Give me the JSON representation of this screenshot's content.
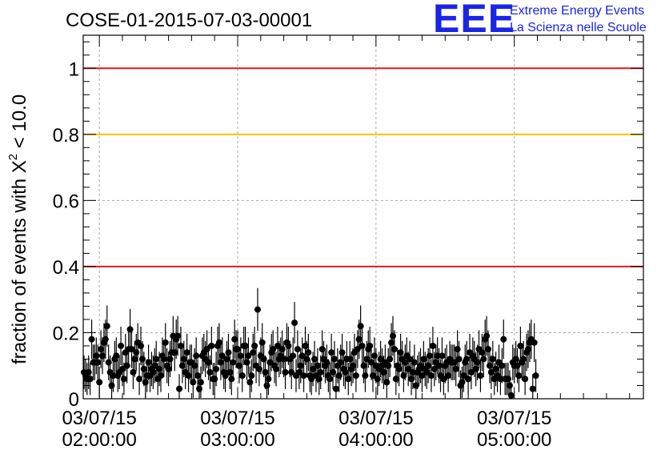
{
  "title": "COSE-01-2015-07-03-00001",
  "logo": {
    "mark": "EEE",
    "line1": "Extreme Energy Events",
    "line2": "La Scienza nelle Scuole",
    "color": "#1a24e6"
  },
  "colors": {
    "threshold_red": "#e41a1a",
    "threshold_yellow": "#f5c400",
    "marker": "#000000",
    "grid": "#aaaaaa"
  },
  "chart_data": {
    "type": "scatter",
    "title": "COSE-01-2015-07-03-00001",
    "ylabel": "fraction of events with χ² < 10.0",
    "ylabel_parts": {
      "before": "fraction of events with ",
      "symbol": "X",
      "exponent": "2",
      "after": " < 10.0"
    },
    "xlabel": "",
    "x_range": [
      "2015-07-03 01:53:00",
      "2015-07-03 05:56:00"
    ],
    "ylim": [
      0,
      1.1
    ],
    "y_ticks": [
      "0",
      "0.2",
      "0.4",
      "0.6",
      "0.8",
      "1"
    ],
    "x_ticks": [
      {
        "date": "03/07/15",
        "time": "02:00:00",
        "t": "2015-07-03 02:00:00"
      },
      {
        "date": "03/07/15",
        "time": "03:00:00",
        "t": "2015-07-03 03:00:00"
      },
      {
        "date": "03/07/15",
        "time": "04:00:00",
        "t": "2015-07-03 04:00:00"
      },
      {
        "date": "03/07/15",
        "time": "05:00:00",
        "t": "2015-07-03 05:00:00"
      }
    ],
    "grid": true,
    "reference_lines": [
      {
        "y": 1.0,
        "color": "#e41a1a"
      },
      {
        "y": 0.8,
        "color": "#f5c400"
      },
      {
        "y": 0.4,
        "color": "#e41a1a"
      }
    ],
    "series": [
      {
        "marker": "filled-circle",
        "error_bars": true,
        "x_start": "2015-07-03 01:53:20",
        "x_step_seconds": 40,
        "y": [
          0.08,
          0.07,
          0.06,
          0.08,
          0.06,
          0.18,
          0.11,
          0.11,
          0.13,
          0.11,
          0.05,
          0.15,
          0.13,
          0.17,
          0.18,
          0.22,
          0.11,
          0.08,
          0.04,
          0.07,
          0.12,
          0.13,
          0.07,
          0.08,
          0.16,
          0.09,
          0.06,
          0.14,
          0.1,
          0.15,
          0.21,
          0.15,
          0.08,
          0.12,
          0.14,
          0.17,
          0.06,
          0.16,
          0.12,
          0.09,
          0.05,
          0.07,
          0.11,
          0.07,
          0.09,
          0.08,
          0.1,
          0.12,
          0.06,
          0.09,
          0.07,
          0.13,
          0.12,
          0.17,
          0.1,
          0.09,
          0.12,
          0.14,
          0.19,
          0.14,
          0.18,
          0.19,
          0.03,
          0.16,
          0.1,
          0.12,
          0.08,
          0.14,
          0.07,
          0.11,
          0.11,
          0.05,
          0.1,
          0.13,
          0.07,
          0.03,
          0.05,
          0.13,
          0.14,
          0.12,
          0.15,
          0.11,
          0.08,
          0.16,
          0.06,
          0.06,
          0.09,
          0.16,
          0.17,
          0.11,
          0.13,
          0.08,
          0.07,
          0.12,
          0.14,
          0.08,
          0.06,
          0.11,
          0.18,
          0.15,
          0.15,
          0.1,
          0.13,
          0.07,
          0.16,
          0.16,
          0.11,
          0.13,
          0.05,
          0.07,
          0.14,
          0.16,
          0.1,
          0.27,
          0.09,
          0.13,
          0.17,
          0.12,
          0.08,
          0.04,
          0.06,
          0.11,
          0.14,
          0.15,
          0.1,
          0.09,
          0.16,
          0.12,
          0.13,
          0.15,
          0.12,
          0.08,
          0.17,
          0.16,
          0.12,
          0.08,
          0.13,
          0.23,
          0.07,
          0.15,
          0.08,
          0.1,
          0.13,
          0.07,
          0.16,
          0.12,
          0.14,
          0.07,
          0.06,
          0.09,
          0.12,
          0.07,
          0.1,
          0.06,
          0.08,
          0.15,
          0.12,
          0.1,
          0.11,
          0.07,
          0.06,
          0.14,
          0.08,
          0.12,
          0.03,
          0.1,
          0.07,
          0.11,
          0.14,
          0.09,
          0.08,
          0.12,
          0.06,
          0.12,
          0.09,
          0.1,
          0.14,
          0.07,
          0.15,
          0.18,
          0.22,
          0.16,
          0.1,
          0.07,
          0.12,
          0.15,
          0.16,
          0.11,
          0.07,
          0.13,
          0.1,
          0.06,
          0.09,
          0.12,
          0.1,
          0.08,
          0.11,
          0.05,
          0.1,
          0.12,
          0.17,
          0.19,
          0.15,
          0.06,
          0.1,
          0.09,
          0.14,
          0.12,
          0.07,
          0.11,
          0.13,
          0.09,
          0.12,
          0.06,
          0.08,
          0.11,
          0.04,
          0.08,
          0.09,
          0.1,
          0.07,
          0.12,
          0.09,
          0.08,
          0.1,
          0.13,
          0.07,
          0.16,
          0.09,
          0.11,
          0.13,
          0.1,
          0.07,
          0.13,
          0.06,
          0.1,
          0.11,
          0.07,
          0.12,
          0.11,
          0.11,
          0.11,
          0.09,
          0.15,
          0.12,
          0.04,
          0.05,
          0.07,
          0.11,
          0.12,
          0.06,
          0.14,
          0.08,
          0.13,
          0.12,
          0.09,
          0.11,
          0.15,
          0.07,
          0.14,
          0.12,
          0.18,
          0.19,
          0.15,
          0.1,
          0.08,
          0.12,
          0.06,
          0.09,
          0.07,
          0.11,
          0.06,
          0.1,
          0.18,
          0.06,
          0.06,
          0.06,
          0.04,
          0.01,
          0.11,
          0.1,
          0.12,
          0.1,
          0.07,
          0.16,
          0.11,
          0.12,
          0.06,
          0.14,
          0.15,
          0.17,
          0.18,
          0.03,
          0.17,
          0.07
        ]
      }
    ]
  }
}
